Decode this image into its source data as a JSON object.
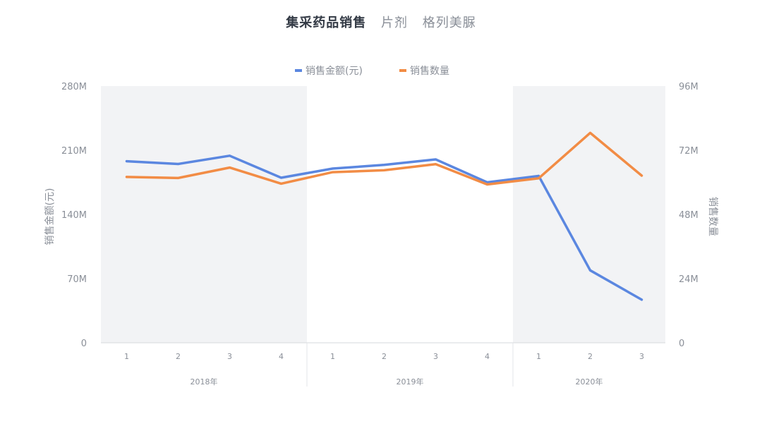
{
  "header": {
    "title": "集采药品销售",
    "subtitle_1": "片剂",
    "subtitle_2": "格列美脲"
  },
  "chart_data": {
    "type": "line",
    "title": "集采药品销售",
    "groups": [
      {
        "label": "2018年",
        "categories": [
          "1",
          "2",
          "3",
          "4"
        ]
      },
      {
        "label": "2019年",
        "categories": [
          "1",
          "2",
          "3",
          "4"
        ]
      },
      {
        "label": "2020年",
        "categories": [
          "1",
          "2",
          "3"
        ]
      }
    ],
    "y_left": {
      "label": "销售金额(元)",
      "min": 0,
      "max": 280,
      "ticks": [
        "0",
        "70M",
        "140M",
        "210M",
        "280M"
      ]
    },
    "y_right": {
      "label": "销售数量",
      "min": 0,
      "max": 96,
      "ticks": [
        "0",
        "24M",
        "48M",
        "72M",
        "96M"
      ]
    },
    "series": [
      {
        "name": "销售金额(元)",
        "axis": "left",
        "color": "#5b87e0",
        "values": [
          198,
          195,
          204,
          180,
          190,
          194,
          200,
          175,
          182,
          79,
          47
        ]
      },
      {
        "name": "销售数量",
        "axis": "right",
        "color": "#f28c45",
        "values": [
          62,
          61.6,
          65.5,
          59.5,
          63.8,
          64.5,
          66.8,
          59.2,
          61.5,
          78.5,
          62.5
        ]
      }
    ],
    "shaded_groups": [
      0,
      2
    ],
    "legend_position": "top-center",
    "grid": false
  }
}
